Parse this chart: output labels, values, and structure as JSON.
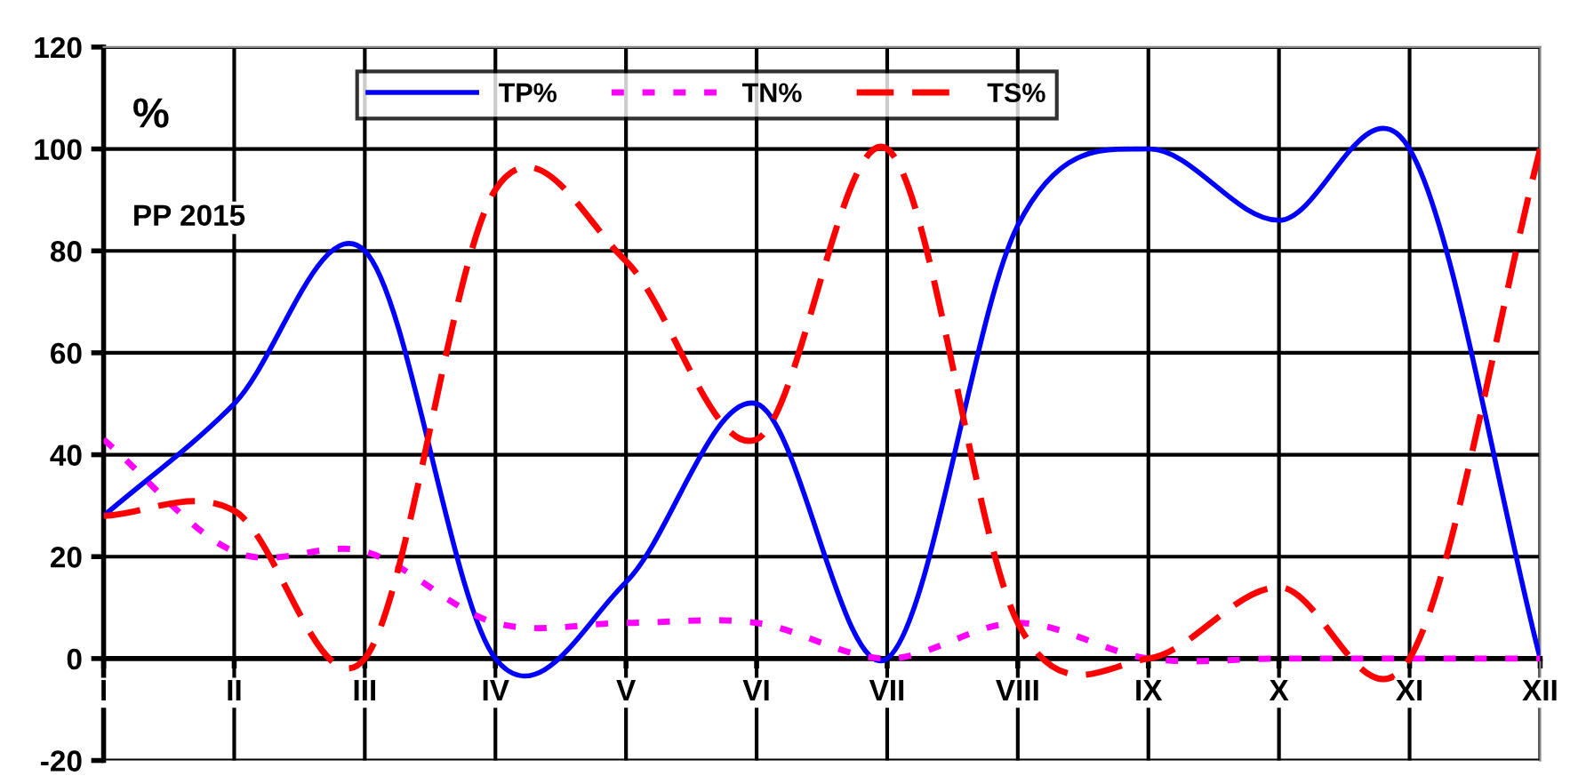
{
  "chart_data": {
    "type": "line",
    "ylabel": "%",
    "annotations": [
      "PP 2015"
    ],
    "categories": [
      "I",
      "II",
      "III",
      "IV",
      "V",
      "VI",
      "VII",
      "VIII",
      "IX",
      "X",
      "XI",
      "XII"
    ],
    "series": [
      {
        "name": "TP%",
        "color": "#0000ff",
        "line_style": "solid",
        "values": [
          28,
          50,
          80,
          0,
          15,
          50,
          0,
          85,
          100,
          86,
          100,
          0
        ]
      },
      {
        "name": "TN%",
        "color": "#ff00ff",
        "line_style": "dotted",
        "values": [
          43,
          21,
          21,
          7,
          7,
          7,
          0,
          7,
          0,
          0,
          0,
          0
        ]
      },
      {
        "name": "TS%",
        "color": "#ff0000",
        "line_style": "dashed",
        "values": [
          28,
          29,
          0,
          92,
          78,
          43,
          100,
          7,
          0,
          14,
          0,
          100
        ]
      }
    ],
    "ylim": [
      -20,
      120
    ],
    "yticks": [
      -20,
      0,
      20,
      40,
      60,
      80,
      100,
      120
    ],
    "grid": true,
    "legend": "top",
    "marker": "none"
  }
}
